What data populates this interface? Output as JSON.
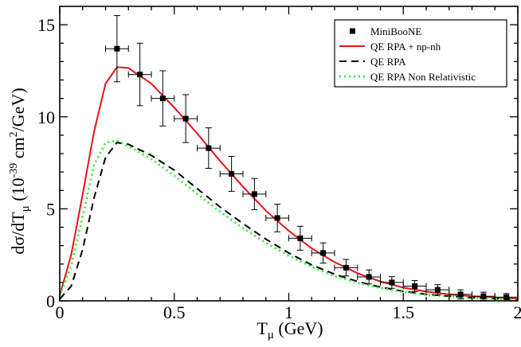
{
  "chart_data": {
    "type": "line",
    "title": "",
    "xlabel": "T_μ (GeV)",
    "ylabel": "dσ/dT_μ (10^-39 cm^2/GeV)",
    "xlim": [
      0,
      2
    ],
    "ylim": [
      0,
      16
    ],
    "xticks": [
      0,
      0.5,
      1,
      1.5,
      2
    ],
    "xtick_labels": [
      "0",
      "0.5",
      "1",
      "1.5",
      "2"
    ],
    "yticks": [
      0,
      5,
      10,
      15
    ],
    "ytick_labels": [
      "0",
      "5",
      "10",
      "15"
    ],
    "legend_position": "top-right",
    "series": [
      {
        "name": "MiniBooNE",
        "style": "markers-errorbars",
        "color": "#000000",
        "x": [
          0.25,
          0.35,
          0.45,
          0.55,
          0.65,
          0.75,
          0.85,
          0.95,
          1.05,
          1.15,
          1.25,
          1.35,
          1.45,
          1.55,
          1.65,
          1.75,
          1.85,
          1.95
        ],
        "y": [
          13.7,
          12.3,
          11.0,
          9.9,
          8.3,
          6.9,
          5.8,
          4.5,
          3.4,
          2.6,
          1.8,
          1.3,
          1.0,
          0.8,
          0.6,
          0.35,
          0.25,
          0.2
        ],
        "yerr": [
          1.8,
          1.7,
          1.5,
          1.3,
          1.1,
          0.95,
          0.85,
          0.75,
          0.65,
          0.55,
          0.45,
          0.38,
          0.32,
          0.3,
          0.28,
          0.25,
          0.22,
          0.2
        ],
        "xerr": 0.05
      },
      {
        "name": "QE RPA + np-nh",
        "style": "solid",
        "color": "#e8121d",
        "x": [
          0,
          0.05,
          0.1,
          0.15,
          0.2,
          0.25,
          0.3,
          0.4,
          0.5,
          0.6,
          0.7,
          0.8,
          0.9,
          1.0,
          1.1,
          1.2,
          1.3,
          1.4,
          1.5,
          1.6,
          1.7,
          1.8,
          1.9,
          2.0
        ],
        "y": [
          0.3,
          2.5,
          5.8,
          9.2,
          11.8,
          12.7,
          12.65,
          11.8,
          10.5,
          9.1,
          7.6,
          6.2,
          4.9,
          3.8,
          2.85,
          2.1,
          1.5,
          1.05,
          0.72,
          0.5,
          0.35,
          0.25,
          0.18,
          0.12
        ]
      },
      {
        "name": "QE RPA",
        "style": "dashed",
        "color": "#000000",
        "x": [
          0,
          0.05,
          0.1,
          0.15,
          0.2,
          0.25,
          0.3,
          0.4,
          0.5,
          0.6,
          0.7,
          0.8,
          0.9,
          1.0,
          1.1,
          1.2,
          1.3,
          1.4,
          1.5,
          1.6,
          1.7,
          1.8,
          1.9,
          2.0
        ],
        "y": [
          0.1,
          0.8,
          2.8,
          5.6,
          7.8,
          8.6,
          8.5,
          7.9,
          7.1,
          6.1,
          5.1,
          4.2,
          3.35,
          2.6,
          1.95,
          1.45,
          1.05,
          0.75,
          0.52,
          0.36,
          0.25,
          0.17,
          0.12,
          0.08
        ]
      },
      {
        "name": "QE RPA Non Relativistic",
        "style": "dotted",
        "color": "#22ee22",
        "x": [
          0,
          0.05,
          0.1,
          0.15,
          0.2,
          0.25,
          0.3,
          0.4,
          0.5,
          0.6,
          0.7,
          0.8,
          0.9,
          1.0,
          1.1,
          1.2,
          1.3,
          1.4,
          1.5,
          1.6,
          1.7,
          1.8,
          1.9,
          2.0
        ],
        "y": [
          0.3,
          1.9,
          4.6,
          7.4,
          8.6,
          8.7,
          8.4,
          7.7,
          6.8,
          5.8,
          4.85,
          3.95,
          3.15,
          2.45,
          1.85,
          1.35,
          0.98,
          0.7,
          0.48,
          0.33,
          0.23,
          0.16,
          0.11,
          0.07
        ]
      }
    ]
  },
  "axis_text": {
    "x_main": "T",
    "x_sub": "μ",
    "x_unit": " (GeV)",
    "y_main": "dσ/dT",
    "y_sub": "μ",
    "y_open": " (10",
    "y_exp": "-39",
    "y_cm": " cm",
    "y_sq": "2",
    "y_close": "/GeV)"
  }
}
